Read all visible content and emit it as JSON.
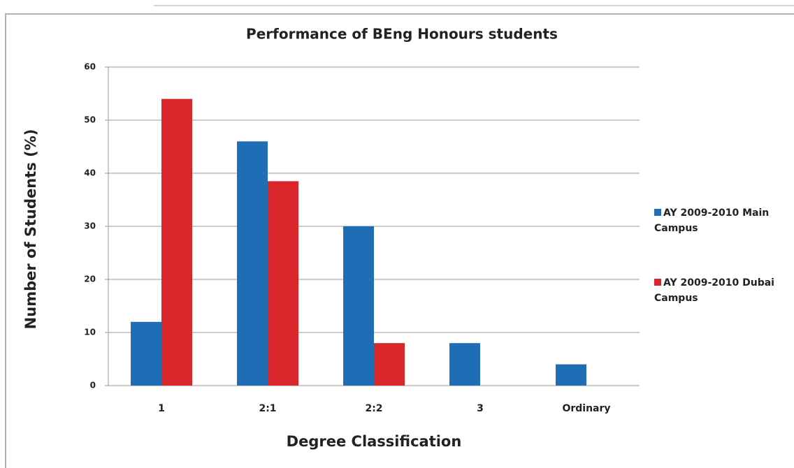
{
  "chart_data": {
    "type": "bar",
    "title": "Performance of BEng Honours students",
    "x_label": "Degree Classification",
    "y_label": "Number of Students (%)",
    "categories": [
      "1",
      "2:1",
      "2:2",
      "3",
      "Ordinary"
    ],
    "series": [
      {
        "name": "AY 2009-2010 Main Campus",
        "color": "#1f6db5",
        "values": [
          12,
          46,
          30,
          8,
          4
        ]
      },
      {
        "name": "AY 2009-2010 Dubai Campus",
        "color": "#d9262a",
        "values": [
          54,
          38.5,
          8,
          0,
          0
        ]
      }
    ],
    "ylim": [
      0,
      60
    ],
    "yticks": [
      0,
      10,
      20,
      30,
      40,
      50,
      60
    ],
    "grid": true,
    "legend": "right"
  }
}
